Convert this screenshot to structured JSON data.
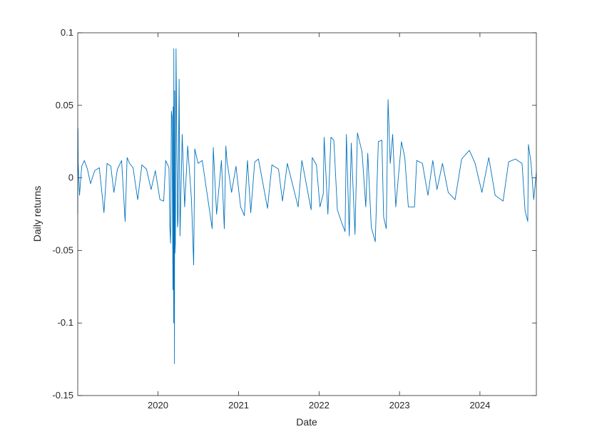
{
  "chart_data": {
    "type": "line",
    "title": "",
    "xlabel": "Date",
    "ylabel": "Daily returns",
    "xlim": [
      "2019-01-02",
      "2024-09-13"
    ],
    "ylim": [
      -0.15,
      0.1
    ],
    "xticks": [
      {
        "date": "2020-01-01",
        "label": "2020"
      },
      {
        "date": "2021-01-01",
        "label": "2021"
      },
      {
        "date": "2022-01-01",
        "label": "2022"
      },
      {
        "date": "2023-01-01",
        "label": "2023"
      },
      {
        "date": "2024-01-01",
        "label": "2024"
      }
    ],
    "yticks": [
      {
        "value": 0.1,
        "label": "0.1"
      },
      {
        "value": 0.05,
        "label": "0.05"
      },
      {
        "value": 0,
        "label": "0"
      },
      {
        "value": -0.05,
        "label": "-0.05"
      },
      {
        "value": -0.1,
        "label": "-0.1"
      },
      {
        "value": -0.15,
        "label": "-0.15"
      }
    ],
    "grid": false,
    "series": [
      {
        "color": "#0072BD",
        "note_frequency": "trading days",
        "x": [
          "2019-01-02",
          "2019-01-03",
          "2019-01-04",
          "2019-01-10",
          "2019-01-20",
          "2019-02-01",
          "2019-02-15",
          "2019-03-01",
          "2019-03-20",
          "2019-04-10",
          "2019-05-01",
          "2019-05-15",
          "2019-06-01",
          "2019-06-15",
          "2019-07-01",
          "2019-07-20",
          "2019-08-05",
          "2019-08-14",
          "2019-08-25",
          "2019-09-10",
          "2019-10-01",
          "2019-10-20",
          "2019-11-10",
          "2019-12-01",
          "2019-12-20",
          "2020-01-10",
          "2020-01-27",
          "2020-02-05",
          "2020-02-20",
          "2020-02-24",
          "2020-02-27",
          "2020-03-02",
          "2020-03-05",
          "2020-03-09",
          "2020-03-10",
          "2020-03-12",
          "2020-03-13",
          "2020-03-16",
          "2020-03-17",
          "2020-03-18",
          "2020-03-20",
          "2020-03-23",
          "2020-03-24",
          "2020-03-26",
          "2020-03-30",
          "2020-04-01",
          "2020-04-06",
          "2020-04-10",
          "2020-04-20",
          "2020-05-01",
          "2020-05-15",
          "2020-06-01",
          "2020-06-11",
          "2020-06-16",
          "2020-07-01",
          "2020-07-20",
          "2020-08-10",
          "2020-09-03",
          "2020-09-08",
          "2020-09-23",
          "2020-10-15",
          "2020-10-28",
          "2020-11-04",
          "2020-11-09",
          "2020-11-30",
          "2020-12-20",
          "2021-01-10",
          "2021-01-27",
          "2021-02-10",
          "2021-02-25",
          "2021-03-15",
          "2021-04-01",
          "2021-05-12",
          "2021-06-01",
          "2021-07-01",
          "2021-07-19",
          "2021-08-10",
          "2021-09-28",
          "2021-10-15",
          "2021-11-26",
          "2021-12-01",
          "2021-12-20",
          "2022-01-05",
          "2022-01-20",
          "2022-01-24",
          "2022-02-10",
          "2022-02-24",
          "2022-03-09",
          "2022-03-25",
          "2022-04-14",
          "2022-04-29",
          "2022-05-05",
          "2022-05-18",
          "2022-05-27",
          "2022-06-13",
          "2022-06-24",
          "2022-07-15",
          "2022-08-01",
          "2022-08-10",
          "2022-08-26",
          "2022-09-13",
          "2022-09-27",
          "2022-10-13",
          "2022-10-21",
          "2022-11-02",
          "2022-11-10",
          "2022-11-20",
          "2022-12-01",
          "2022-12-15",
          "2023-01-10",
          "2023-01-25",
          "2023-02-10",
          "2023-03-10",
          "2023-03-20",
          "2023-04-15",
          "2023-05-10",
          "2023-06-01",
          "2023-06-20",
          "2023-07-15",
          "2023-08-10",
          "2023-09-10",
          "2023-10-10",
          "2023-11-14",
          "2023-12-10",
          "2024-01-10",
          "2024-02-10",
          "2024-03-10",
          "2024-04-15",
          "2024-05-10",
          "2024-06-10",
          "2024-07-10",
          "2024-07-24",
          "2024-08-05",
          "2024-08-08",
          "2024-08-20",
          "2024-09-01",
          "2024-09-13"
        ],
        "y": [
          -0.025,
          0.034,
          0.01,
          -0.012,
          0.008,
          0.012,
          0.006,
          -0.004,
          0.005,
          0.007,
          -0.024,
          0.01,
          0.008,
          -0.01,
          0.006,
          0.012,
          -0.03,
          0.014,
          0.01,
          0.007,
          -0.015,
          0.009,
          0.006,
          -0.008,
          0.005,
          -0.015,
          -0.016,
          0.012,
          0.007,
          -0.034,
          -0.045,
          0.046,
          0.042,
          -0.077,
          0.049,
          -0.1,
          0.089,
          -0.128,
          0.06,
          -0.052,
          -0.045,
          0.089,
          0.07,
          0.035,
          -0.034,
          -0.03,
          0.068,
          -0.04,
          0.03,
          -0.02,
          0.022,
          -0.015,
          -0.06,
          0.02,
          0.01,
          0.012,
          -0.01,
          -0.035,
          0.021,
          -0.025,
          0.012,
          -0.035,
          0.022,
          0.012,
          -0.01,
          0.008,
          -0.02,
          -0.026,
          0.012,
          -0.024,
          0.011,
          0.013,
          -0.021,
          0.009,
          0.006,
          -0.016,
          0.01,
          -0.02,
          0.012,
          -0.022,
          0.014,
          0.009,
          -0.02,
          -0.011,
          0.028,
          -0.025,
          0.028,
          0.026,
          -0.022,
          -0.031,
          -0.037,
          0.03,
          -0.04,
          0.024,
          -0.039,
          0.031,
          0.018,
          -0.02,
          0.017,
          -0.034,
          -0.044,
          0.025,
          0.026,
          -0.027,
          -0.035,
          0.054,
          0.01,
          0.03,
          -0.02,
          0.025,
          0.014,
          -0.02,
          -0.02,
          0.012,
          0.01,
          -0.012,
          0.012,
          -0.008,
          0.01,
          -0.01,
          -0.015,
          0.013,
          0.019,
          0.01,
          -0.01,
          0.014,
          -0.012,
          -0.016,
          0.011,
          0.013,
          0.01,
          -0.023,
          -0.03,
          0.023,
          0.01,
          -0.015,
          0.004
        ]
      }
    ]
  }
}
